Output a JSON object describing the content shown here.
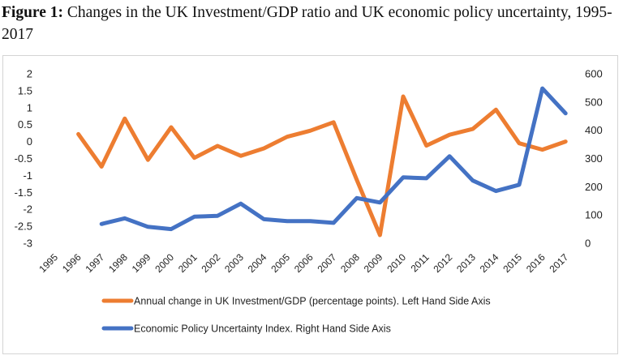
{
  "figure": {
    "label": "Figure 1:",
    "title": " Changes in the UK Investment/GDP ratio and UK economic policy uncertainty, 1995-2017"
  },
  "colors": {
    "investment": "#ED7D31",
    "uncertainty": "#4472C4"
  },
  "chart_data": {
    "type": "line",
    "categories": [
      "1995",
      "1996",
      "1997",
      "1998",
      "1999",
      "2000",
      "2001",
      "2002",
      "2003",
      "2004",
      "2005",
      "2006",
      "2007",
      "2008",
      "2009",
      "2010",
      "2011",
      "2012",
      "2013",
      "2014",
      "2015",
      "2016",
      "2017"
    ],
    "series": [
      {
        "name": "Annual change in UK Investment/GDP  (percentage points). Left Hand Side Axis",
        "axis": "left",
        "values": [
          null,
          0.22,
          -0.74,
          0.68,
          -0.54,
          0.42,
          -0.48,
          -0.13,
          -0.42,
          -0.2,
          0.14,
          0.32,
          0.57,
          -1.13,
          -2.76,
          1.33,
          -0.12,
          0.2,
          0.37,
          0.94,
          -0.05,
          -0.24,
          0.0
        ]
      },
      {
        "name": "Economic Policy Uncertainty Index. Right Hand Side Axis",
        "axis": "right",
        "values": [
          null,
          null,
          68,
          88,
          58,
          50,
          94,
          97,
          140,
          85,
          78,
          78,
          72,
          160,
          144,
          233,
          230,
          308,
          222,
          185,
          207,
          548,
          460
        ]
      }
    ],
    "y_left": {
      "ylim": [
        -3,
        2
      ],
      "ticks": [
        "2",
        "1.5",
        "1",
        "0.5",
        "0",
        "-0.5",
        "-1",
        "-1.5",
        "-2",
        "-2.5",
        "-3"
      ]
    },
    "y_right": {
      "ylim": [
        0,
        600
      ],
      "ticks": [
        "600",
        "500",
        "400",
        "300",
        "200",
        "100",
        "0"
      ]
    },
    "legend_position": "bottom"
  }
}
